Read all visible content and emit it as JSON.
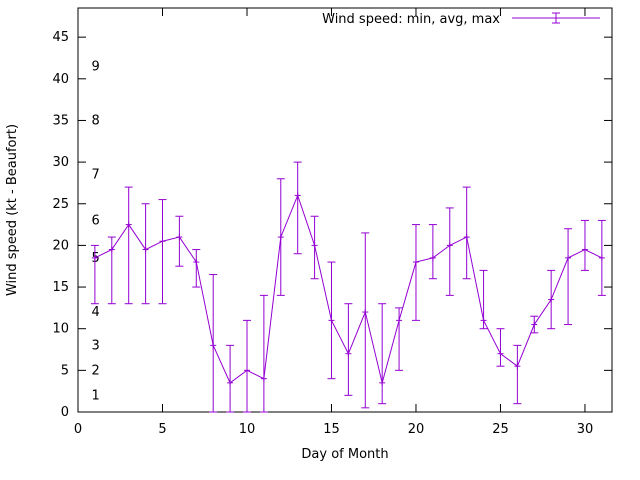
{
  "chart_data": {
    "type": "line",
    "title": "",
    "legend": "Wind speed: min, avg, max",
    "legend_position": "top-right",
    "grid": false,
    "xlabel": "Day of Month",
    "ylabel": "Wind speed (kt - Beaufort)",
    "xlim": [
      0,
      31.6
    ],
    "ylim": [
      0,
      48.5
    ],
    "x_ticks": [
      0,
      5,
      10,
      15,
      20,
      25,
      30
    ],
    "y_ticks": [
      0,
      5,
      10,
      15,
      20,
      25,
      30,
      35,
      40,
      45
    ],
    "series_color": "#9400d3",
    "x": [
      1,
      2,
      3,
      4,
      5,
      6,
      7,
      8,
      9,
      10,
      11,
      12,
      13,
      14,
      15,
      16,
      17,
      18,
      19,
      20,
      21,
      22,
      23,
      24,
      25,
      26,
      27,
      28,
      29,
      30,
      31
    ],
    "series": [
      {
        "name": "avg",
        "values": [
          18.5,
          19.5,
          22.5,
          19.5,
          20.5,
          21,
          18,
          8,
          3.5,
          5,
          4,
          21,
          26,
          20,
          11,
          7,
          12,
          3.5,
          11,
          18,
          18.5,
          20,
          21,
          11,
          7,
          5.5,
          10.5,
          13.5,
          18.5,
          19.5,
          18.5
        ]
      },
      {
        "name": "min",
        "values": [
          13,
          13,
          13,
          13,
          13,
          17.5,
          15,
          0,
          0,
          0,
          0,
          14,
          19,
          16,
          4,
          2,
          0.5,
          1,
          5,
          11,
          16,
          14,
          16,
          10,
          5.5,
          1,
          9.5,
          10,
          10.5,
          17,
          14
        ]
      },
      {
        "name": "max",
        "values": [
          20,
          21,
          27,
          25,
          25.5,
          23.5,
          19.5,
          16.5,
          8,
          11,
          14,
          28,
          30,
          23.5,
          18,
          13,
          21.5,
          13,
          12.5,
          22.5,
          22.5,
          24.5,
          27,
          17,
          10,
          8,
          11.5,
          17,
          22,
          23,
          23
        ]
      }
    ],
    "beaufort_labels": [
      {
        "label": "1",
        "x": 0.8,
        "y": 2
      },
      {
        "label": "2",
        "x": 0.8,
        "y": 5
      },
      {
        "label": "3",
        "x": 0.8,
        "y": 8
      },
      {
        "label": "4",
        "x": 0.8,
        "y": 12
      },
      {
        "label": "5",
        "x": 0.8,
        "y": 18.5
      },
      {
        "label": "6",
        "x": 0.8,
        "y": 23
      },
      {
        "label": "7",
        "x": 0.8,
        "y": 28.5
      },
      {
        "label": "8",
        "x": 0.8,
        "y": 35
      },
      {
        "label": "9",
        "x": 0.8,
        "y": 41.5
      }
    ]
  }
}
